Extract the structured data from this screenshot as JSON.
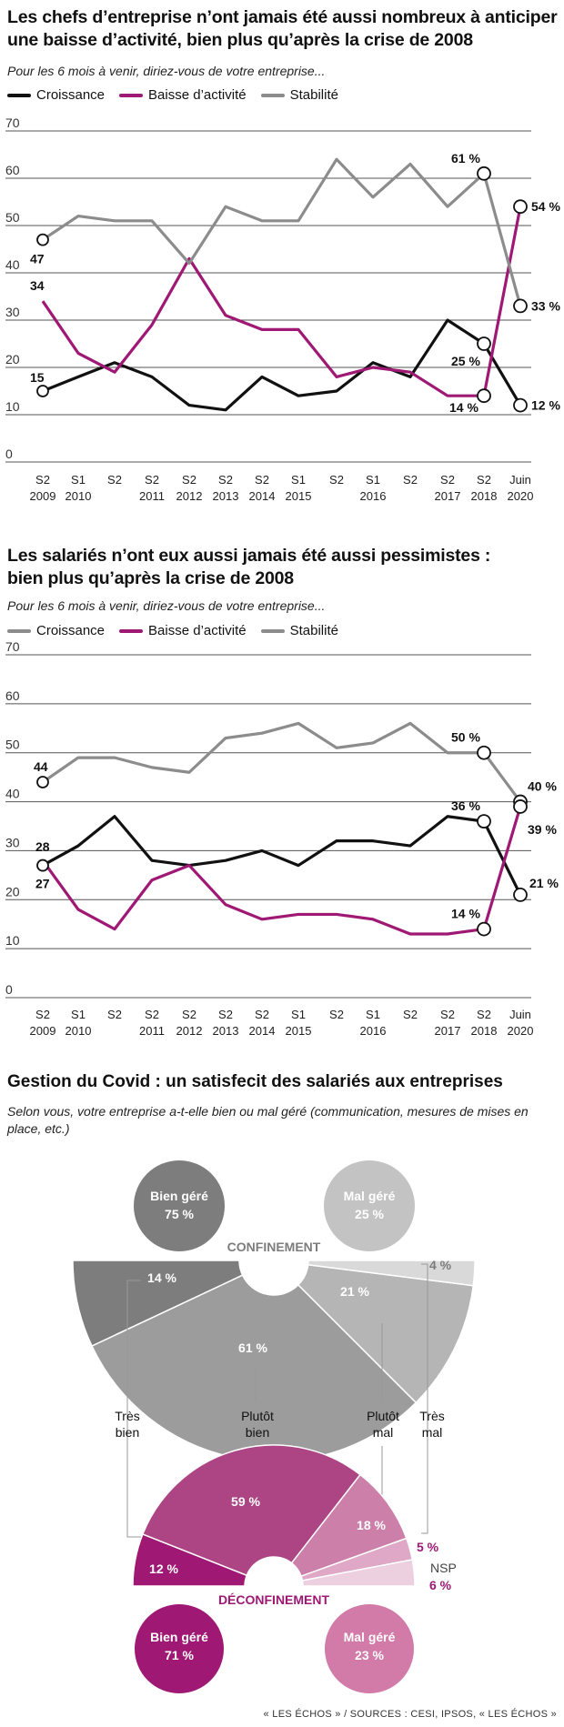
{
  "colors": {
    "croissance": "#111111",
    "baisse": "#9e1874",
    "stabilite": "#8c8c8c",
    "bien_dark": "#7d7d7d",
    "mal_light": "#c3c3c3",
    "bien_magenta": "#9e1874",
    "mal_pink": "#d27aa8"
  },
  "charts": {
    "dirigeants": {
      "title_line1": "Les chefs d’entreprise n’ont jamais été aussi nombreux à anticiper",
      "title_line2": "une baisse d’activité,  bien plus qu’après la crise de 2008",
      "subtitle": "Pour les 6 mois à venir, diriez-vous de votre entreprise...",
      "legend": [
        "Croissance",
        "Baisse d’activité",
        "Stabilité"
      ]
    },
    "salaries": {
      "title_line1": "Les salariés n’ont eux aussi jamais été aussi pessimistes :",
      "title_line2": "bien plus qu’après la crise de 2008",
      "subtitle": "Pour les 6 mois à venir, diriez-vous de votre entreprise...",
      "legend": [
        "Croissance",
        "Baisse d’activité",
        "Stabilité"
      ]
    }
  },
  "chart_data": [
    {
      "type": "line",
      "title": "Les chefs d’entreprise n’ont jamais été aussi nombreux à anticiper une baisse d’activité,  bien plus qu’après la crise de 2008",
      "x_top": [
        "S2",
        "S1",
        "S2",
        "S2",
        "S2",
        "S2",
        "S2",
        "S1",
        "S2",
        "S1",
        "S2",
        "S2",
        "S2",
        "Juin"
      ],
      "x_bottom": [
        "2009",
        "2010",
        "",
        "2011",
        "2012",
        "2013",
        "2014",
        "2015",
        "",
        "2016",
        "",
        "2017",
        "2018",
        "2020"
      ],
      "ylim": [
        0,
        70
      ],
      "yticks": [
        0,
        10,
        20,
        30,
        40,
        50,
        60,
        70
      ],
      "grid": true,
      "series": [
        {
          "name": "Croissance",
          "values": [
            15,
            18,
            21,
            18,
            12,
            11,
            18,
            14,
            15,
            21,
            18,
            30,
            25,
            12
          ]
        },
        {
          "name": "Baisse d’activité",
          "values": [
            34,
            23,
            19,
            29,
            43,
            31,
            28,
            28,
            18,
            20,
            19,
            14,
            14,
            54
          ]
        },
        {
          "name": "Stabilité",
          "values": [
            47,
            52,
            51,
            51,
            42,
            54,
            51,
            51,
            64,
            56,
            63,
            54,
            61,
            33
          ]
        }
      ],
      "annotations": [
        "47",
        "34",
        "15",
        "61 %",
        "25 %",
        "14 %",
        "54 %",
        "33 %",
        "12 %"
      ]
    },
    {
      "type": "line",
      "title": "Les salariés n’ont eux aussi jamais été aussi pessimistes : bien plus qu’après la crise de 2008",
      "x_top": [
        "S2",
        "S1",
        "S2",
        "S2",
        "S2",
        "S2",
        "S2",
        "S1",
        "S2",
        "S1",
        "S2",
        "S2",
        "S2",
        "Juin"
      ],
      "x_bottom": [
        "2009",
        "2010",
        "",
        "2011",
        "2012",
        "2013",
        "2014",
        "2015",
        "",
        "2016",
        "",
        "2017",
        "2018",
        "2020"
      ],
      "ylim": [
        0,
        70
      ],
      "yticks": [
        0,
        10,
        20,
        30,
        40,
        50,
        60,
        70
      ],
      "grid": true,
      "series": [
        {
          "name": "Croissance",
          "values": [
            27,
            31,
            37,
            28,
            27,
            28,
            30,
            27,
            32,
            32,
            31,
            37,
            36,
            21
          ]
        },
        {
          "name": "Baisse d’activité",
          "values": [
            28,
            18,
            14,
            24,
            27,
            19,
            16,
            17,
            17,
            16,
            13,
            13,
            14,
            39
          ]
        },
        {
          "name": "Stabilité",
          "values": [
            44,
            49,
            49,
            47,
            46,
            53,
            54,
            56,
            51,
            52,
            56,
            50,
            50,
            40
          ]
        }
      ],
      "annotations": [
        "44",
        "28",
        "27",
        "50 %",
        "36 %",
        "14 %",
        "40 %",
        "39 %",
        "21 %"
      ]
    },
    {
      "type": "pie",
      "title": "Gestion du Covid : un satisfecit des salariés aux entreprises",
      "subtitle": "Selon vous, votre entreprise a-t-elle bien ou mal géré (communication, mesures de mises en place, etc.)",
      "groups": [
        {
          "name": "CONFINEMENT",
          "slices": [
            {
              "label": "Très bien",
              "value": 14
            },
            {
              "label": "Plutôt bien",
              "value": 61
            },
            {
              "label": "Plutôt mal",
              "value": 21
            },
            {
              "label": "Très mal",
              "value": 4
            }
          ],
          "summary": [
            {
              "label": "Bien géré",
              "value": "75 %"
            },
            {
              "label": "Mal géré",
              "value": "25 %"
            }
          ]
        },
        {
          "name": "DÉCONFINEMENT",
          "slices": [
            {
              "label": "Très bien",
              "value": 12
            },
            {
              "label": "Plutôt bien",
              "value": 59
            },
            {
              "label": "Plutôt mal",
              "value": 18
            },
            {
              "label": "Très mal",
              "value": 5
            },
            {
              "label": "NSP",
              "value": 6
            }
          ],
          "summary": [
            {
              "label": "Bien géré",
              "value": "71 %"
            },
            {
              "label": "Mal géré",
              "value": "23 %"
            }
          ]
        }
      ]
    }
  ],
  "covid": {
    "title": "Gestion du Covid : un satisfecit des salariés aux entreprises",
    "subtitle": "Selon vous, votre entreprise a-t-elle bien ou mal géré (communication, mesures de mises en place, etc.)",
    "conf": {
      "label": "CONFINEMENT",
      "bien_label": "Bien géré",
      "bien_value": "75 %",
      "mal_label": "Mal géré",
      "mal_value": "25 %",
      "slices": [
        "14 %",
        "61 %",
        "21 %",
        "4 %"
      ]
    },
    "deconf": {
      "label": "DÉCONFINEMENT",
      "bien_label": "Bien géré",
      "bien_value": "71 %",
      "mal_label": "Mal géré",
      "mal_value": "23 %",
      "slices": [
        "12 %",
        "59 %",
        "18 %",
        "5 %",
        "6 %"
      ],
      "nsp_label": "NSP"
    },
    "categories": {
      "tres_bien_1": "Très",
      "tres_bien_2": "bien",
      "plutot_bien_1": "Plutôt",
      "plutot_bien_2": "bien",
      "plutot_mal_1": "Plutôt",
      "plutot_mal_2": "mal",
      "tres_mal_1": "Très",
      "tres_mal_2": "mal"
    }
  },
  "credit": "« LES ÉCHOS » / SOURCES : CESI, IPSOS, « LES ÉCHOS »"
}
